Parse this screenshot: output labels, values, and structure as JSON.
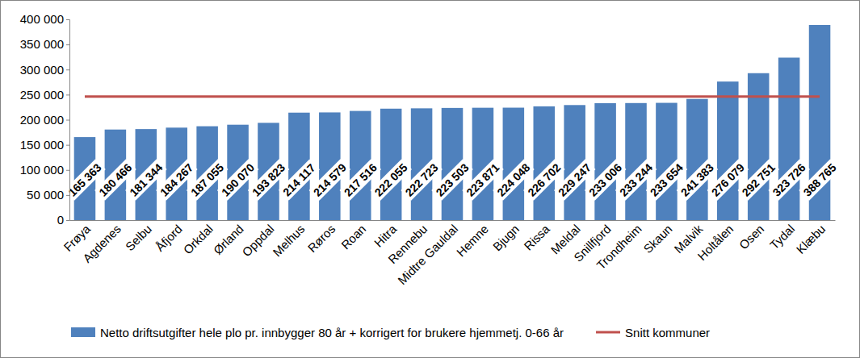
{
  "chart_data": {
    "type": "bar",
    "categories": [
      "Frøya",
      "Agdenes",
      "Selbu",
      "Åfjord",
      "Orkdal",
      "Ørland",
      "Oppdal",
      "Melhus",
      "Røros",
      "Roan",
      "Hitra",
      "Rennebu",
      "Midtre Gauldal",
      "Hemne",
      "Bjugn",
      "Rissa",
      "Meldal",
      "Snillfjord",
      "Trondheim",
      "Skaun",
      "Malvik",
      "Holtålen",
      "Osen",
      "Tydal",
      "Klæbu"
    ],
    "series": [
      {
        "name": "Netto driftsutgifter hele plo pr. innbygger 80 år + korrigert for brukere hjemmetj. 0-66 år",
        "type": "bar",
        "color": "#4f81bd",
        "values": [
          165363,
          180466,
          181344,
          184267,
          187055,
          190070,
          193823,
          214117,
          214579,
          217516,
          222055,
          222723,
          223503,
          223871,
          224048,
          226702,
          229247,
          233006,
          233244,
          233654,
          241383,
          276079,
          292751,
          323726,
          388765
        ],
        "value_labels": [
          "165 363",
          "180 466",
          "181 344",
          "184 267",
          "187 055",
          "190 070",
          "193 823",
          "214 117",
          "214 579",
          "217 516",
          "222 055",
          "222 723",
          "223 503",
          "223 871",
          "224 048",
          "226 702",
          "229 247",
          "233 006",
          "233 244",
          "233 654",
          "241 383",
          "276 079",
          "292 751",
          "323 726",
          "388 765"
        ]
      },
      {
        "name": "Snitt kommuner",
        "type": "line",
        "color": "#c0504d",
        "values": [
          246000,
          246000,
          246000,
          246000,
          246000,
          246000,
          246000,
          246000,
          246000,
          246000,
          246000,
          246000,
          246000,
          246000,
          246000,
          246000,
          246000,
          246000,
          246000,
          246000,
          246000,
          246000,
          246000,
          246000,
          246000
        ]
      }
    ],
    "ylim": [
      0,
      400000
    ],
    "yticks": [
      0,
      {
        "value": 50000,
        "label": "50 000"
      },
      {
        "value": 100000,
        "label": "100 000"
      },
      {
        "value": 150000,
        "label": "150 000"
      },
      {
        "value": 200000,
        "label": "200 000"
      },
      {
        "value": 250000,
        "label": "250 000"
      },
      {
        "value": 300000,
        "label": "300 000"
      },
      {
        "value": 350000,
        "label": "350 000"
      },
      {
        "value": 400000,
        "label": "400 000"
      }
    ],
    "grid": false,
    "data_labels": true,
    "legend": "bottom"
  }
}
